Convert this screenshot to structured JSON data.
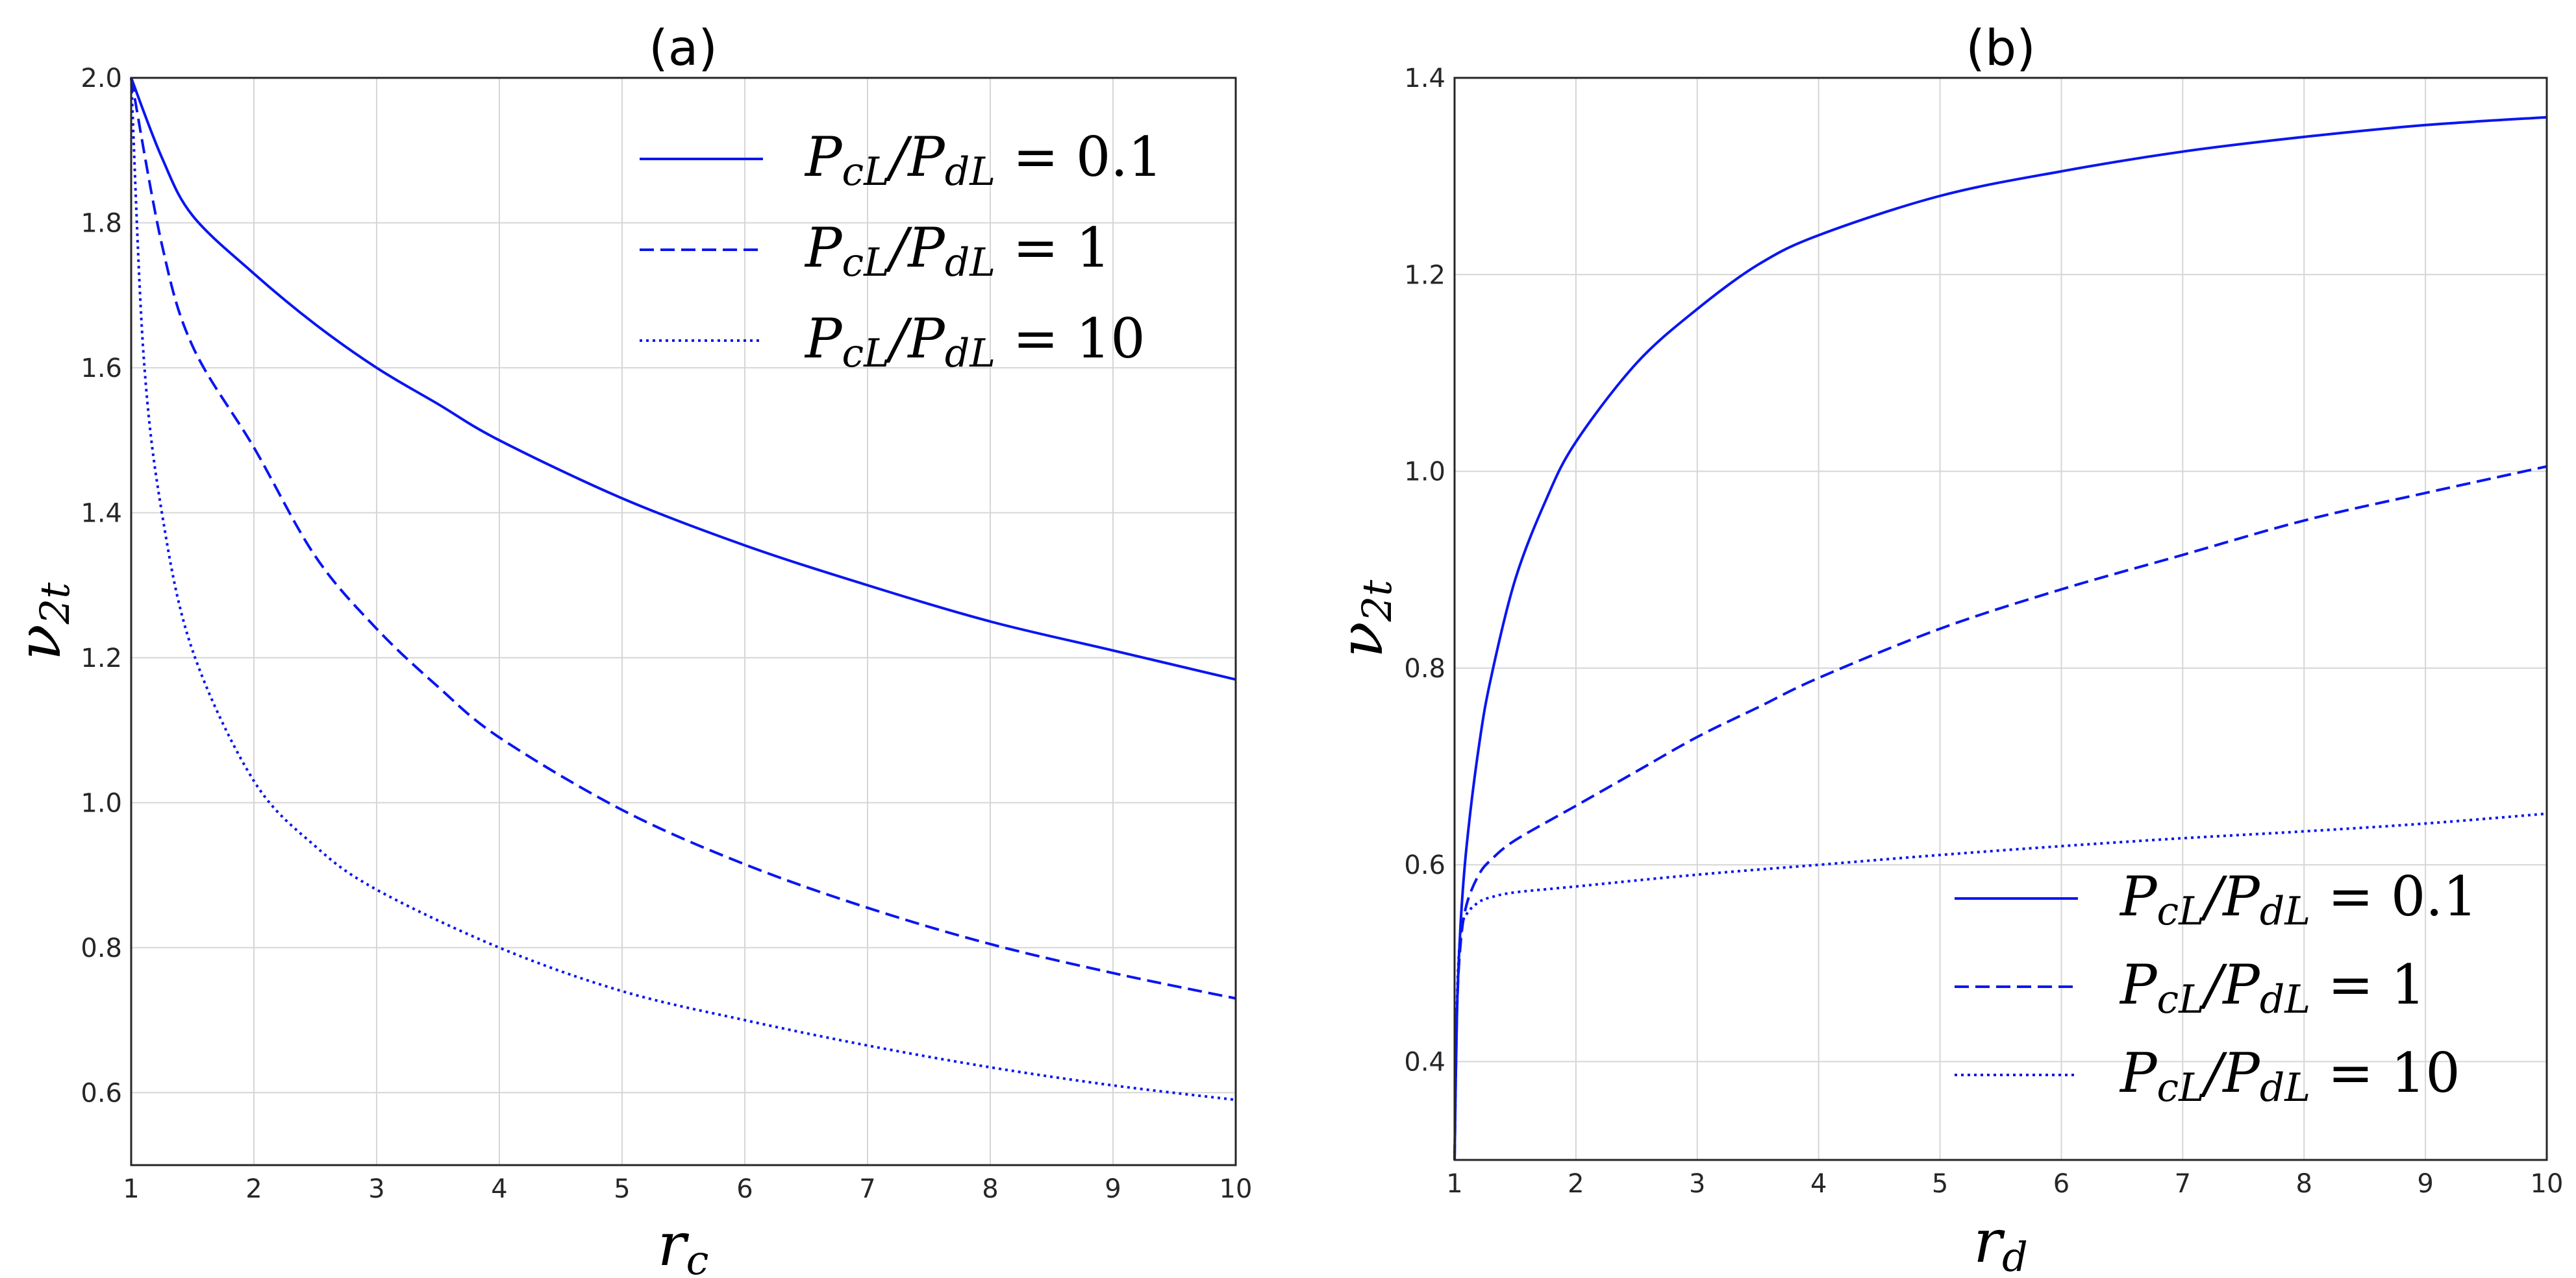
{
  "chart_data": [
    {
      "type": "line",
      "title": "(a)",
      "xlabel": "r_c",
      "ylabel": "ν_2t",
      "xlim": [
        1,
        10
      ],
      "ylim": [
        0.5,
        2.0
      ],
      "xticks": [
        1,
        2,
        3,
        4,
        5,
        6,
        7,
        8,
        9,
        10
      ],
      "yticks": [
        0.6,
        0.8,
        1.0,
        1.2,
        1.4,
        1.6,
        1.8,
        2.0
      ],
      "ytick_labels": [
        "0.6",
        "0.8",
        "1.0",
        "1.2",
        "1.4",
        "1.6",
        "1.8",
        "2.0"
      ],
      "grid": true,
      "legend_position": "top-right",
      "color": "#0a16f0",
      "series": [
        {
          "name": "P_cL/P_dL = 0.1",
          "style": "solid",
          "x": [
            1,
            1.25,
            1.5,
            2,
            2.5,
            3,
            3.5,
            4,
            5,
            6,
            7,
            8,
            9,
            10
          ],
          "y": [
            2.0,
            1.89,
            1.81,
            1.73,
            1.66,
            1.6,
            1.55,
            1.5,
            1.42,
            1.355,
            1.3,
            1.25,
            1.21,
            1.17
          ]
        },
        {
          "name": "P_cL/P_dL = 1",
          "style": "dashed",
          "x": [
            1,
            1.25,
            1.5,
            2,
            2.5,
            3,
            3.5,
            4,
            5,
            6,
            7,
            8,
            9,
            10
          ],
          "y": [
            2.0,
            1.77,
            1.63,
            1.49,
            1.34,
            1.24,
            1.16,
            1.09,
            0.99,
            0.915,
            0.855,
            0.805,
            0.765,
            0.73
          ]
        },
        {
          "name": "P_cL/P_dL = 10",
          "style": "dotted",
          "x": [
            1,
            1.1,
            1.25,
            1.5,
            2,
            2.5,
            3,
            4,
            5,
            6,
            7,
            8,
            9,
            10
          ],
          "y": [
            2.0,
            1.62,
            1.4,
            1.21,
            1.03,
            0.94,
            0.88,
            0.8,
            0.74,
            0.7,
            0.665,
            0.635,
            0.61,
            0.59
          ]
        }
      ]
    },
    {
      "type": "line",
      "title": "(b)",
      "xlabel": "r_d",
      "ylabel": "ν_2t",
      "xlim": [
        1,
        10
      ],
      "ylim": [
        0.3,
        1.4
      ],
      "xticks": [
        1,
        2,
        3,
        4,
        5,
        6,
        7,
        8,
        9,
        10
      ],
      "yticks": [
        0.4,
        0.6,
        0.8,
        1.0,
        1.2,
        1.4
      ],
      "ytick_labels": [
        "0.4",
        "0.6",
        "0.8",
        "1.0",
        "1.2",
        "1.4"
      ],
      "grid": true,
      "legend_position": "bottom-right",
      "color": "#0a16f0",
      "series": [
        {
          "name": "P_cL/P_dL = 0.1",
          "style": "solid",
          "x": [
            1,
            1.02,
            1.05,
            1.1,
            1.2,
            1.3,
            1.5,
            1.75,
            2,
            2.5,
            3,
            3.5,
            4,
            5,
            6,
            7,
            8,
            9,
            10
          ],
          "y": [
            0.3,
            0.45,
            0.54,
            0.62,
            0.72,
            0.79,
            0.89,
            0.97,
            1.03,
            1.11,
            1.165,
            1.21,
            1.24,
            1.28,
            1.305,
            1.325,
            1.34,
            1.352,
            1.36
          ]
        },
        {
          "name": "P_cL/P_dL = 1",
          "style": "dashed",
          "x": [
            1,
            1.02,
            1.05,
            1.1,
            1.2,
            1.3,
            1.5,
            2,
            2.5,
            3,
            3.5,
            4,
            5,
            6,
            7,
            8,
            9,
            10
          ],
          "y": [
            0.3,
            0.45,
            0.52,
            0.56,
            0.59,
            0.605,
            0.625,
            0.66,
            0.695,
            0.73,
            0.76,
            0.79,
            0.84,
            0.88,
            0.915,
            0.95,
            0.978,
            1.005
          ]
        },
        {
          "name": "P_cL/P_dL = 10",
          "style": "dotted",
          "x": [
            1,
            1.02,
            1.05,
            1.1,
            1.2,
            1.3,
            1.5,
            2,
            3,
            4,
            5,
            6,
            7,
            8,
            9,
            10
          ],
          "y": [
            0.3,
            0.46,
            0.53,
            0.55,
            0.562,
            0.567,
            0.572,
            0.578,
            0.59,
            0.6,
            0.61,
            0.619,
            0.627,
            0.634,
            0.642,
            0.652
          ]
        }
      ]
    }
  ]
}
